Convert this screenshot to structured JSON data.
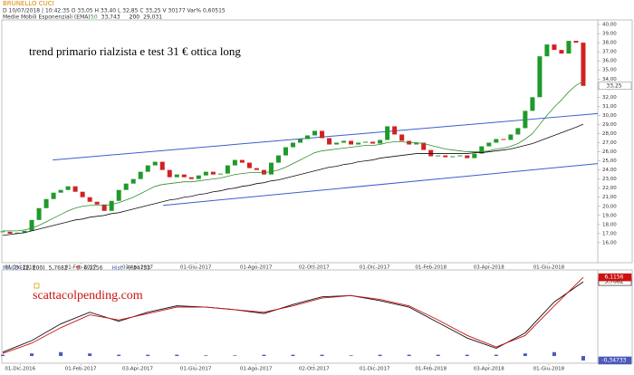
{
  "chart_data": [
    {
      "type": "stock",
      "header": {
        "symbol": "BRUNELLO CUCI",
        "info": "D 10/07/2018 | 10:42:35   O 33,05   H 33,40   L 32,85   C 33,25   V 30177   Var% 0,60515",
        "ema_title": "Medie Mobili Esponenziali (EMA)"
      },
      "annotation": "trend primario rialzista e test 31 € ottica long",
      "last_label": "33,25",
      "up_color": "#1f9a2a",
      "down_color": "#d42020",
      "values": [
        17.2,
        17.0,
        17.1,
        17.3,
        18.5,
        19.8,
        20.8,
        21.5,
        21.8,
        22.2,
        21.6,
        21.0,
        20.5,
        20.2,
        19.5,
        20.6,
        21.8,
        22.5,
        23.0,
        23.8,
        24.5,
        24.9,
        24.0,
        23.2,
        23.5,
        23.2,
        23.0,
        23.4,
        23.8,
        23.5,
        23.6,
        24.5,
        25.1,
        24.8,
        24.2,
        24.0,
        23.5,
        24.8,
        25.6,
        26.5,
        27.0,
        27.4,
        27.8,
        28.3,
        27.5,
        26.8,
        27.0,
        27.2,
        26.8,
        27.0,
        27.1,
        26.9,
        27.3,
        28.8,
        27.9,
        27.2,
        26.8,
        27.0,
        26.2,
        25.5,
        25.6,
        25.4,
        25.5,
        25.6,
        25.3,
        25.8,
        26.6,
        27.0,
        27.4,
        27.3,
        27.9,
        28.6,
        30.5,
        32.0,
        36.5,
        37.8,
        37.2,
        36.8,
        38.2,
        38.0,
        33.25
      ],
      "series": [
        {
          "name": "50",
          "color": "#2f8f2f",
          "legend_value": "33,743",
          "values": [
            17.3,
            17.3,
            17.3,
            17.4,
            17.6,
            17.9,
            18.3,
            18.7,
            19.1,
            19.5,
            19.8,
            20.0,
            20.1,
            20.1,
            20.1,
            20.2,
            20.4,
            20.7,
            21.0,
            21.4,
            21.8,
            22.2,
            22.4,
            22.5,
            22.6,
            22.7,
            22.7,
            22.8,
            22.9,
            23.0,
            23.1,
            23.3,
            23.5,
            23.6,
            23.7,
            23.7,
            23.7,
            23.8,
            24.0,
            24.3,
            24.7,
            25.1,
            25.5,
            25.9,
            26.1,
            26.2,
            26.3,
            26.4,
            26.5,
            26.6,
            26.7,
            26.7,
            26.8,
            27.0,
            27.1,
            27.1,
            27.0,
            27.0,
            26.9,
            26.7,
            26.5,
            26.3,
            26.2,
            26.1,
            26.0,
            26.0,
            26.0,
            26.1,
            26.3,
            26.4,
            26.6,
            26.9,
            27.4,
            28.0,
            29.0,
            30.0,
            30.9,
            31.7,
            32.6,
            33.3,
            33.743
          ]
        },
        {
          "name": "200",
          "color": "#111111",
          "legend_value": "29,031",
          "values": [
            16.8,
            16.9,
            17.0,
            17.1,
            17.3,
            17.5,
            17.7,
            17.9,
            18.1,
            18.3,
            18.5,
            18.6,
            18.8,
            18.9,
            19.0,
            19.2,
            19.3,
            19.5,
            19.7,
            19.9,
            20.1,
            20.3,
            20.5,
            20.7,
            20.8,
            21.0,
            21.1,
            21.3,
            21.4,
            21.6,
            21.7,
            21.9,
            22.0,
            22.2,
            22.3,
            22.5,
            22.6,
            22.8,
            22.9,
            23.1,
            23.3,
            23.5,
            23.7,
            23.9,
            24.1,
            24.3,
            24.4,
            24.6,
            24.7,
            24.9,
            25.0,
            25.1,
            25.3,
            25.4,
            25.5,
            25.6,
            25.7,
            25.8,
            25.8,
            25.8,
            25.8,
            25.8,
            25.8,
            25.8,
            25.8,
            25.9,
            25.9,
            26.0,
            26.1,
            26.2,
            26.3,
            26.5,
            26.7,
            26.9,
            27.2,
            27.5,
            27.8,
            28.1,
            28.4,
            28.7,
            29.031
          ]
        }
      ],
      "trendlines": {
        "color": "#3a5fcd",
        "lines": [
          {
            "x": [
              6.9,
              82
            ],
            "y": [
              25.1,
              30.2
            ]
          },
          {
            "x": [
              22.1,
              82
            ],
            "y": [
              20.1,
              24.7
            ]
          }
        ]
      },
      "xlim": [
        0,
        82
      ],
      "ylim": [
        13.8,
        40.8
      ],
      "xticks": [
        {
          "value": 2.4,
          "label": "01-Dic-2016"
        },
        {
          "value": 10.75,
          "label": "01-Feb-2017"
        },
        {
          "value": 18.6,
          "label": "03-Apr-2017"
        },
        {
          "value": 26.6,
          "label": "01-Giu-2017"
        },
        {
          "value": 34.9,
          "label": "01-Ago-2017"
        },
        {
          "value": 42.9,
          "label": "02-Ott-2017"
        },
        {
          "value": 51.25,
          "label": "01-Dic-2017"
        },
        {
          "value": 59,
          "label": "01-Feb-2018"
        },
        {
          "value": 67,
          "label": "03-Apr-2018"
        },
        {
          "value": 75.25,
          "label": "01-Giu-2018"
        }
      ],
      "yticks": [
        {
          "value": 16,
          "label": "16,00"
        },
        {
          "value": 17,
          "label": "17,00"
        },
        {
          "value": 18,
          "label": "18,00"
        },
        {
          "value": 19,
          "label": "19,00"
        },
        {
          "value": 20,
          "label": "20,00"
        },
        {
          "value": 21,
          "label": "21,00"
        },
        {
          "value": 22,
          "label": "22,00"
        },
        {
          "value": 23,
          "label": "23,00"
        },
        {
          "value": 24,
          "label": "24,00"
        },
        {
          "value": 25,
          "label": "25,00"
        },
        {
          "value": 26,
          "label": "26,00"
        },
        {
          "value": 27,
          "label": "27,00"
        },
        {
          "value": 28,
          "label": "28,00"
        },
        {
          "value": 29,
          "label": "29,00"
        },
        {
          "value": 30,
          "label": "30,00"
        },
        {
          "value": 31,
          "label": "31,00"
        },
        {
          "value": 32,
          "label": "32,00"
        },
        {
          "value": 33,
          "label": "33,00"
        },
        {
          "value": 34,
          "label": "34,00"
        },
        {
          "value": 35,
          "label": "35,00"
        },
        {
          "value": 36,
          "label": "36,00"
        },
        {
          "value": 37,
          "label": "37,00"
        },
        {
          "value": 38,
          "label": "38,00"
        },
        {
          "value": 39,
          "label": "39,00"
        },
        {
          "value": 40,
          "label": "40,00"
        }
      ]
    },
    {
      "type": "macd",
      "title": "MACD",
      "watermark": "scattacolpending.com",
      "x": [
        0,
        4,
        8,
        12,
        16,
        20,
        24,
        28,
        32,
        36,
        40,
        44,
        48,
        52,
        56,
        60,
        64,
        68,
        72,
        76,
        80
      ],
      "series": [
        {
          "name": "(12, 200)",
          "color": "#111111",
          "legend_value": "5,7682",
          "values": [
            0.3,
            1.2,
            2.5,
            3.4,
            2.7,
            3.4,
            3.9,
            3.8,
            3.6,
            3.3,
            4.0,
            4.6,
            4.7,
            4.3,
            3.8,
            2.6,
            1.4,
            0.6,
            1.8,
            4.2,
            5.7682
          ]
        },
        {
          "name": "9",
          "color": "#cc1111",
          "legend_value": "6,1156",
          "values": [
            0.2,
            1.0,
            2.2,
            3.2,
            2.8,
            3.3,
            3.8,
            3.8,
            3.6,
            3.4,
            3.9,
            4.5,
            4.7,
            4.4,
            3.9,
            2.8,
            1.6,
            0.7,
            1.6,
            3.9,
            6.1156
          ]
        },
        {
          "name": "Hist",
          "color": "#4a5ab8",
          "legend_value": "-0,34733",
          "values": [
            0.1,
            0.2,
            0.3,
            0.2,
            0.1,
            0.1,
            0.1,
            0.05,
            0.05,
            0.1,
            0.1,
            0.1,
            0.05,
            0.1,
            0.1,
            0.1,
            0.1,
            0.1,
            0.2,
            0.3,
            -0.34733
          ]
        }
      ],
      "xlim": [
        0,
        82
      ],
      "ylim": [
        -0.56,
        6.69
      ],
      "xticks": [
        {
          "value": 2.4,
          "label": "01-Dic-2016"
        },
        {
          "value": 10.75,
          "label": "01-Feb-2017"
        },
        {
          "value": 18.6,
          "label": "03-Apr-2017"
        },
        {
          "value": 26.6,
          "label": "01-Giu-2017"
        },
        {
          "value": 34.9,
          "label": "01-Ago-2017"
        },
        {
          "value": 42.9,
          "label": "02-Ott-2017"
        },
        {
          "value": 51.25,
          "label": "01-Dic-2017"
        },
        {
          "value": 59,
          "label": "01-Feb-2018"
        },
        {
          "value": 67,
          "label": "03-Apr-2018"
        },
        {
          "value": 75.25,
          "label": "01-Giu-2018"
        }
      ]
    }
  ]
}
